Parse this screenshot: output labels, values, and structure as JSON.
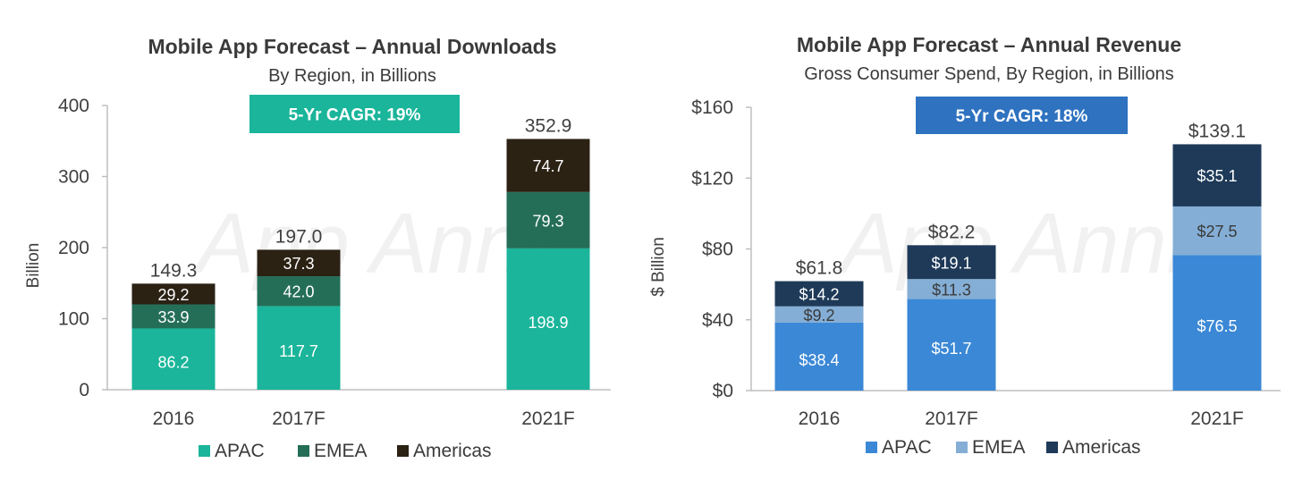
{
  "watermark": "App Annie",
  "chart_data": [
    {
      "type": "bar",
      "stacked": true,
      "title": "Mobile App Forecast – Annual Downloads",
      "subtitle": "By Region, in Billions",
      "badge": "5-Yr CAGR: 19%",
      "badge_color": "#1ab59a",
      "ylabel": "Billion",
      "ylim": [
        0,
        400
      ],
      "yticks": [
        0,
        100,
        200,
        300,
        400
      ],
      "ytick_labels": [
        "0",
        "100",
        "200",
        "300",
        "400"
      ],
      "categories": [
        "2016",
        "2017F",
        "2021F"
      ],
      "totals": [
        "149.3",
        "197.0",
        "352.9"
      ],
      "series": [
        {
          "name": "APAC",
          "color": "#1ab59a",
          "label_color": "#ffffff",
          "values": [
            86.2,
            117.7,
            198.9
          ],
          "labels": [
            "86.2",
            "117.7",
            "198.9"
          ]
        },
        {
          "name": "EMEA",
          "color": "#246e58",
          "label_color": "#ffffff",
          "values": [
            33.9,
            42.0,
            79.3
          ],
          "labels": [
            "33.9",
            "42.0",
            "79.3"
          ]
        },
        {
          "name": "Americas",
          "color": "#2b2214",
          "label_color": "#ffffff",
          "values": [
            29.2,
            37.3,
            74.7
          ],
          "labels": [
            "29.2",
            "37.3",
            "74.7"
          ]
        }
      ],
      "legend_position": "bottom",
      "grid": false
    },
    {
      "type": "bar",
      "stacked": true,
      "title": "Mobile App Forecast – Annual Revenue",
      "subtitle": "Gross Consumer Spend, By Region, in Billions",
      "badge": "5-Yr CAGR: 18%",
      "badge_color": "#2e72c0",
      "ylabel": "$ Billion",
      "ylim": [
        0,
        160
      ],
      "yticks": [
        0,
        40,
        80,
        120,
        160
      ],
      "ytick_labels": [
        "$0",
        "$40",
        "$80",
        "$120",
        "$160"
      ],
      "categories": [
        "2016",
        "2017F",
        "2021F"
      ],
      "totals": [
        "$61.8",
        "$82.2",
        "$139.1"
      ],
      "series": [
        {
          "name": "APAC",
          "color": "#3b88d6",
          "label_color": "#ffffff",
          "values": [
            38.4,
            51.7,
            76.5
          ],
          "labels": [
            "$38.4",
            "$51.7",
            "$76.5"
          ]
        },
        {
          "name": "EMEA",
          "color": "#84aed6",
          "label_color": "#3a3a3a",
          "values": [
            9.2,
            11.3,
            27.5
          ],
          "labels": [
            "$9.2",
            "$11.3",
            "$27.5"
          ]
        },
        {
          "name": "Americas",
          "color": "#1e3a58",
          "label_color": "#ffffff",
          "values": [
            14.2,
            19.1,
            35.1
          ],
          "labels": [
            "$14.2",
            "$19.1",
            "$35.1"
          ]
        }
      ],
      "legend_position": "bottom",
      "grid": false
    }
  ]
}
